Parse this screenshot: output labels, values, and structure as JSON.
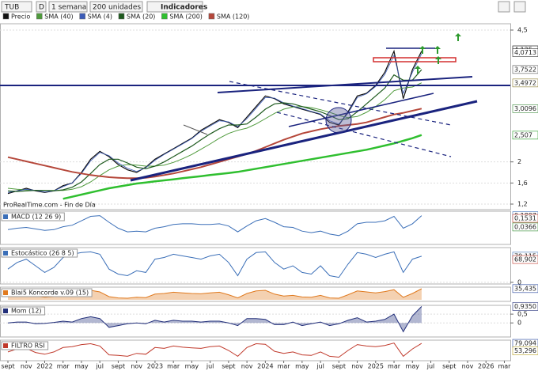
{
  "toolbar": {
    "symbol": "TUB",
    "mode": "D",
    "period": "1 semana",
    "units": "200 unidades",
    "indicators": "Indicadores"
  },
  "chart_data": [
    {
      "type": "line",
      "source": "ProRealTime.com - Fin de Día",
      "categories": [
        "sept",
        null,
        "nov",
        null,
        "2022",
        null,
        "mar",
        null,
        "may",
        null,
        "jul",
        null,
        "sept",
        null,
        "nov",
        null,
        "2023",
        null,
        "mar",
        null,
        "may",
        null,
        "jul",
        null,
        "sept",
        null,
        "nov",
        null,
        "2024",
        null,
        "mar",
        null,
        "may",
        null,
        "jul",
        null,
        "sept",
        null,
        "nov",
        null,
        "2025",
        null,
        "mar",
        null,
        "may",
        null,
        "jul",
        null,
        "sept",
        null,
        "nov",
        null,
        "2026",
        null,
        "mar"
      ],
      "series": [
        {
          "name": "Precio",
          "color": "#111111",
          "width": 1.2,
          "values": [
            1.4,
            1.45,
            1.5,
            1.45,
            1.42,
            1.45,
            1.55,
            1.6,
            1.8,
            2.05,
            2.2,
            2.1,
            1.95,
            1.85,
            1.8,
            1.9,
            2.05,
            2.15,
            2.25,
            2.35,
            2.45,
            2.6,
            2.7,
            2.8,
            2.75,
            2.65,
            2.85,
            3.05,
            3.25,
            3.2,
            3.1,
            3.05,
            3.0,
            2.95,
            2.9,
            2.75,
            2.7,
            2.95,
            3.25,
            3.3,
            3.45,
            3.7,
            4.1,
            3.2,
            3.75,
            4.1,
            null,
            null,
            null,
            null,
            null,
            null,
            null,
            null,
            null
          ]
        },
        {
          "name": "SMA (40)",
          "color": "#4f9a3c",
          "width": 1,
          "values": [
            1.5,
            1.48,
            1.47,
            1.46,
            1.46,
            1.46,
            1.46,
            1.48,
            1.53,
            1.62,
            1.74,
            1.85,
            1.92,
            1.95,
            1.94,
            1.92,
            1.92,
            1.94,
            1.99,
            2.06,
            2.14,
            2.24,
            2.34,
            2.45,
            2.54,
            2.6,
            2.64,
            2.72,
            2.82,
            2.92,
            3.0,
            3.04,
            3.05,
            3.03,
            2.99,
            2.94,
            2.88,
            2.84,
            2.86,
            2.94,
            3.05,
            3.18,
            3.35,
            3.4,
            3.42,
            3.5,
            null,
            null,
            null,
            null,
            null,
            null,
            null,
            null,
            null
          ]
        },
        {
          "name": "SMA (4)",
          "color": "#3b5bb8",
          "width": 0.8,
          "values": [
            1.42,
            1.45,
            1.48,
            1.46,
            1.43,
            1.45,
            1.53,
            1.6,
            1.78,
            2.02,
            2.18,
            2.12,
            1.98,
            1.88,
            1.82,
            1.89,
            2.03,
            2.14,
            2.24,
            2.34,
            2.44,
            2.58,
            2.68,
            2.78,
            2.76,
            2.67,
            2.82,
            3.02,
            3.22,
            3.21,
            3.12,
            3.06,
            3.01,
            2.96,
            2.91,
            2.78,
            2.72,
            2.92,
            3.22,
            3.29,
            3.43,
            3.66,
            4.02,
            3.3,
            3.7,
            4.05,
            null,
            null,
            null,
            null,
            null,
            null,
            null,
            null,
            null
          ]
        },
        {
          "name": "SMA (20)",
          "color": "#1e5a1e",
          "width": 1.2,
          "values": [
            1.45,
            1.44,
            1.45,
            1.46,
            1.46,
            1.45,
            1.47,
            1.52,
            1.62,
            1.78,
            1.95,
            2.05,
            2.05,
            1.98,
            1.9,
            1.87,
            1.92,
            2.0,
            2.1,
            2.2,
            2.3,
            2.42,
            2.53,
            2.63,
            2.7,
            2.7,
            2.72,
            2.85,
            3.0,
            3.1,
            3.12,
            3.1,
            3.05,
            3.0,
            2.95,
            2.88,
            2.8,
            2.82,
            2.95,
            3.1,
            3.25,
            3.4,
            3.65,
            3.55,
            3.55,
            3.75,
            null,
            null,
            null,
            null,
            null,
            null,
            null,
            null,
            null
          ]
        },
        {
          "name": "SMA (200)",
          "color": "#2fbf2f",
          "width": 2.5,
          "values": [
            null,
            null,
            null,
            null,
            null,
            null,
            1.3,
            1.34,
            1.38,
            1.42,
            1.46,
            1.5,
            1.53,
            1.56,
            1.59,
            1.61,
            1.63,
            1.65,
            1.67,
            1.69,
            1.71,
            1.73,
            1.75,
            1.77,
            1.79,
            1.81,
            1.84,
            1.87,
            1.9,
            1.93,
            1.96,
            1.99,
            2.02,
            2.05,
            2.08,
            2.11,
            2.14,
            2.17,
            2.2,
            2.23,
            2.27,
            2.31,
            2.35,
            2.4,
            2.45,
            2.51,
            null,
            null,
            null,
            null,
            null,
            null,
            null,
            null,
            null
          ]
        },
        {
          "name": "SMA (120)",
          "color": "#b5473a",
          "width": 2,
          "values": [
            2.09,
            2.05,
            2.01,
            1.97,
            1.93,
            1.89,
            1.85,
            1.81,
            1.78,
            1.75,
            1.73,
            1.71,
            1.7,
            1.69,
            1.69,
            1.7,
            1.72,
            1.75,
            1.78,
            1.82,
            1.86,
            1.9,
            1.95,
            2.0,
            2.05,
            2.1,
            2.15,
            2.21,
            2.28,
            2.35,
            2.42,
            2.48,
            2.54,
            2.58,
            2.62,
            2.65,
            2.68,
            2.7,
            2.72,
            2.75,
            2.8,
            2.85,
            2.9,
            2.93,
            2.97,
            3.01,
            null,
            null,
            null,
            null,
            null,
            null,
            null,
            null,
            null
          ]
        }
      ],
      "ylim": [
        1.095,
        4.62
      ],
      "yticks": [
        {
          "value": 4.5,
          "label": "4,5"
        },
        2,
        {
          "value": 1.6,
          "label": "1,6"
        },
        {
          "value": 1.2,
          "label": "1,2"
        }
      ],
      "markers": [
        {
          "value": 4.125,
          "label": "4,125",
          "color": "#000000"
        },
        {
          "value": 4.0713,
          "label": "4,0713",
          "color": "#333333"
        },
        {
          "value": 3.7522,
          "label": "3,7522",
          "color": "#555555"
        },
        {
          "value": 3.4972,
          "label": "3,4972",
          "color": "#8a7a2a"
        },
        {
          "value": 3.0096,
          "label": "3,0096",
          "color": "#3a8a3a"
        },
        {
          "value": 2.507,
          "label": "2,507",
          "color": "#1f9a1f"
        }
      ]
    },
    {
      "type": "line",
      "title": "MACD (12 26 9)",
      "color": "#3b6fb8",
      "values": [
        0.0,
        0.02,
        0.03,
        0.01,
        -0.01,
        0.0,
        0.04,
        0.06,
        0.12,
        0.18,
        0.19,
        0.1,
        0.02,
        -0.03,
        -0.02,
        -0.03,
        0.02,
        0.04,
        0.07,
        0.08,
        0.08,
        0.07,
        0.07,
        0.08,
        0.05,
        -0.03,
        0.05,
        0.12,
        0.15,
        0.1,
        0.04,
        0.03,
        -0.02,
        -0.04,
        -0.02,
        -0.06,
        -0.08,
        -0.02,
        0.08,
        0.1,
        0.1,
        0.12,
        0.18,
        0.02,
        0.08,
        0.19,
        null,
        null,
        null,
        null,
        null,
        null,
        null,
        null,
        null
      ],
      "ylim": [
        -0.2,
        0.25
      ],
      "markers": [
        {
          "value": 0.1897,
          "label": "0,1897",
          "color": "#3b6fb8"
        },
        {
          "value": 0.1531,
          "label": "0,1531",
          "color": "#c0392b"
        },
        {
          "value": 0.0366,
          "label": "0,0366",
          "color": "#2e8b2e"
        }
      ]
    },
    {
      "type": "line",
      "title": "Estocástico (26 8 5)",
      "color": "#3b6fb8",
      "values": [
        40,
        60,
        70,
        50,
        30,
        45,
        75,
        85,
        90,
        92,
        85,
        40,
        25,
        20,
        35,
        30,
        70,
        75,
        85,
        80,
        75,
        70,
        80,
        85,
        60,
        20,
        70,
        90,
        92,
        60,
        40,
        50,
        30,
        25,
        50,
        20,
        15,
        55,
        90,
        85,
        75,
        85,
        92,
        30,
        70,
        79,
        null,
        null,
        null,
        null,
        null,
        null,
        null,
        null,
        null
      ],
      "ylim": [
        -5,
        105
      ],
      "yticks": [
        0
      ],
      "markers": [
        {
          "value": 79.115,
          "label": "79,115",
          "color": "#3b6fb8"
        },
        {
          "value": 68.902,
          "label": "68,902",
          "color": "#c0392b"
        }
      ]
    },
    {
      "type": "area",
      "title": "Blai5 Koncorde v.09 (15)",
      "color": "#e07a1f",
      "values": [
        10,
        15,
        18,
        12,
        8,
        10,
        18,
        22,
        28,
        30,
        25,
        10,
        6,
        5,
        8,
        7,
        18,
        20,
        24,
        22,
        20,
        19,
        22,
        24,
        16,
        6,
        20,
        28,
        30,
        18,
        12,
        14,
        9,
        8,
        14,
        6,
        5,
        16,
        28,
        25,
        22,
        26,
        32,
        8,
        20,
        35,
        null,
        null,
        null,
        null,
        null,
        null,
        null,
        null,
        null
      ],
      "ylim": [
        -5,
        40
      ],
      "markers": [
        {
          "value": 35.435,
          "label": "35,435",
          "color": "#1f3f9a"
        }
      ]
    },
    {
      "type": "area",
      "title": "Mom (12)",
      "color": "#23307a",
      "values": [
        0,
        0.05,
        0.05,
        -0.05,
        -0.03,
        0.03,
        0.1,
        0.05,
        0.25,
        0.35,
        0.25,
        -0.25,
        -0.15,
        -0.05,
        0,
        -0.05,
        0.15,
        0.05,
        0.15,
        0.1,
        0.1,
        0.05,
        0.1,
        0.1,
        0,
        -0.15,
        0.25,
        0.25,
        0.2,
        -0.1,
        -0.1,
        0.05,
        -0.15,
        -0.05,
        0.05,
        -0.15,
        -0.05,
        0.15,
        0.3,
        0.05,
        0.1,
        0.2,
        0.5,
        -0.5,
        0.4,
        0.935,
        null,
        null,
        null,
        null,
        null,
        null,
        null,
        null,
        null
      ],
      "ylim": [
        -0.8,
        1.0
      ],
      "yticks": [
        {
          "value": 0.5,
          "label": "0,5"
        },
        0
      ],
      "markers": [
        {
          "value": 0.935,
          "label": "0,9350",
          "color": "#23307a"
        }
      ]
    },
    {
      "type": "line",
      "title": "FILTRO RSI",
      "color": "#c0392b",
      "values": [
        50,
        60,
        62,
        48,
        42,
        50,
        65,
        68,
        75,
        78,
        70,
        40,
        38,
        35,
        45,
        42,
        65,
        62,
        70,
        66,
        64,
        62,
        68,
        70,
        55,
        35,
        65,
        78,
        76,
        52,
        45,
        50,
        40,
        38,
        50,
        35,
        32,
        55,
        75,
        70,
        68,
        72,
        80,
        35,
        60,
        79,
        null,
        null,
        null,
        null,
        null,
        null,
        null,
        null,
        null
      ],
      "ylim": [
        20,
        90
      ],
      "markers": [
        {
          "value": 79.094,
          "label": "79,094",
          "color": "#1f3f9a"
        },
        {
          "value": 53.296,
          "label": "53,296",
          "color": "#b8a01f"
        }
      ]
    }
  ]
}
